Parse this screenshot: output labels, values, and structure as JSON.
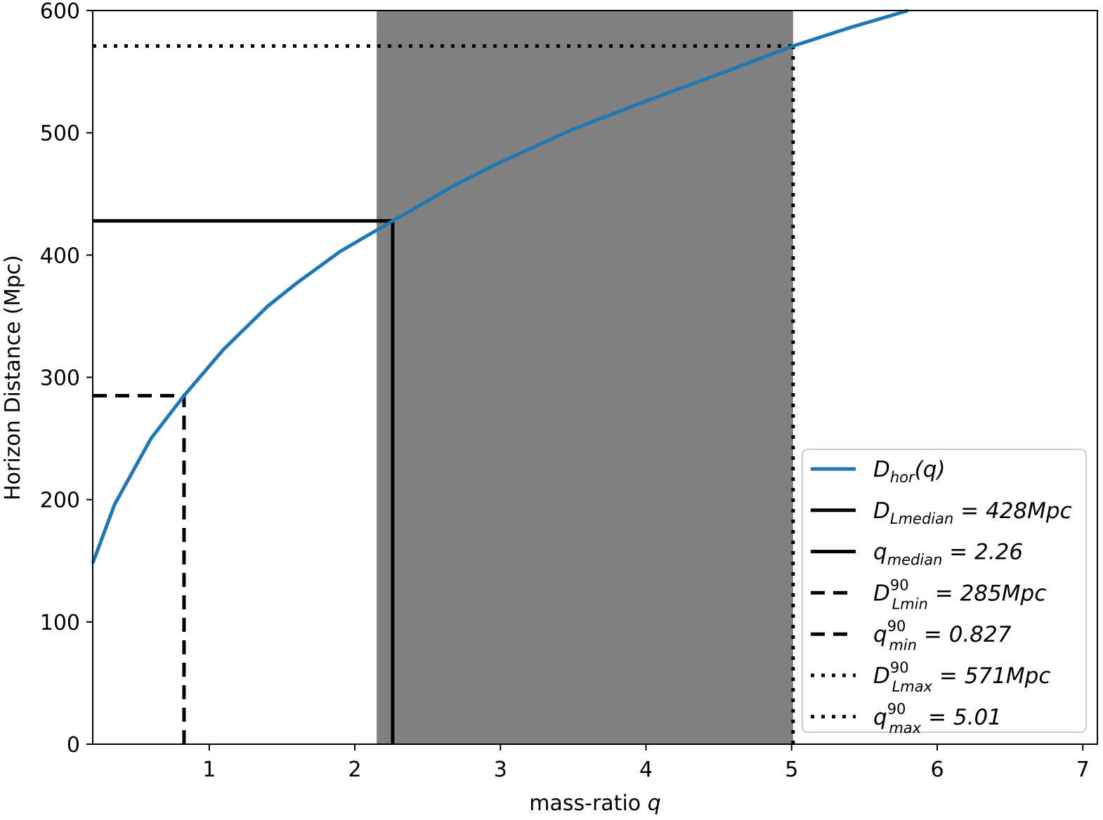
{
  "chart_data": {
    "type": "line",
    "xlabel": {
      "text": "mass-ratio ",
      "var": "q"
    },
    "ylabel": "Horizon Distance (Mpc)",
    "xlim": [
      0.2,
      7.1
    ],
    "ylim": [
      0,
      600
    ],
    "xticks": [
      1,
      2,
      3,
      4,
      5,
      6,
      7
    ],
    "yticks": [
      0,
      100,
      200,
      300,
      400,
      500,
      600
    ],
    "grid": false,
    "legend_position": "lower right",
    "shaded_region": {
      "x_from": 2.15,
      "x_to": 5.01,
      "color": "#808080"
    },
    "series": [
      {
        "name": "D_hor(q)",
        "color": "#1f77b4",
        "x": [
          0.2,
          0.35,
          0.6,
          0.827,
          1.1,
          1.4,
          1.6,
          1.9,
          2.26,
          2.7,
          3.0,
          3.5,
          4.0,
          4.5,
          5.01,
          5.4,
          5.8
        ],
        "y": [
          148,
          196,
          250,
          285,
          323,
          358,
          377,
          403,
          428,
          458,
          476,
          503,
          526,
          548,
          571,
          586,
          600
        ]
      }
    ],
    "reference_lines": [
      {
        "kind": "horizontal",
        "y": 428,
        "x_to": 2.26,
        "style": "solid",
        "color": "#000000"
      },
      {
        "kind": "vertical",
        "x": 2.26,
        "y_to": 428,
        "style": "solid",
        "color": "#000000"
      },
      {
        "kind": "horizontal",
        "y": 285,
        "x_to": 0.827,
        "style": "dashed",
        "color": "#000000"
      },
      {
        "kind": "vertical",
        "x": 0.827,
        "y_to": 285,
        "style": "dashed",
        "color": "#000000"
      },
      {
        "kind": "horizontal",
        "y": 571,
        "x_to": 5.01,
        "style": "dotted",
        "color": "#000000"
      },
      {
        "kind": "vertical",
        "x": 5.01,
        "y_to": 571,
        "style": "dotted",
        "color": "#000000"
      }
    ],
    "legend": [
      {
        "style": "line",
        "color": "#1f77b4",
        "main": "D",
        "sub": "hor",
        "sup": "",
        "rest": "(q)"
      },
      {
        "style": "solid",
        "color": "#000000",
        "main": "D",
        "sub": "Lmedian",
        "sup": "",
        "rest": " = 428Mpc"
      },
      {
        "style": "solid",
        "color": "#000000",
        "main": "q",
        "sub": "median",
        "sup": "",
        "rest": " = 2.26"
      },
      {
        "style": "dashed",
        "color": "#000000",
        "main": "D",
        "sub": "Lmin",
        "sup": "90",
        "rest": " = 285Mpc"
      },
      {
        "style": "dashed",
        "color": "#000000",
        "main": "q",
        "sub": "min",
        "sup": "90",
        "rest": " = 0.827"
      },
      {
        "style": "dotted",
        "color": "#000000",
        "main": "D",
        "sub": "Lmax",
        "sup": "90",
        "rest": " = 571Mpc"
      },
      {
        "style": "dotted",
        "color": "#000000",
        "main": "q",
        "sub": "max",
        "sup": "90",
        "rest": " = 5.01"
      }
    ]
  }
}
